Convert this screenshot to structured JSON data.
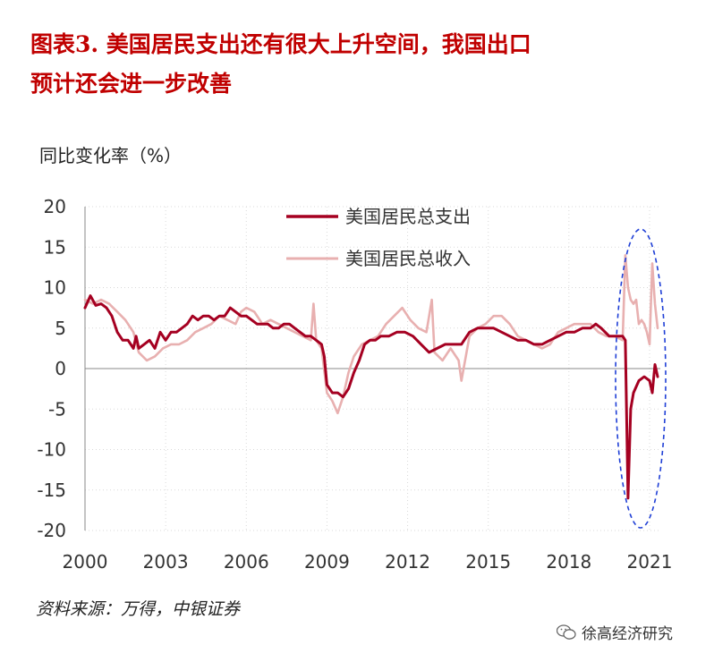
{
  "title": {
    "line1": "图表3. 美国居民支出还有很大上升空间，我国出口",
    "line2": "预计还会进一步改善"
  },
  "unit_label": "同比变化率（%）",
  "source": "资料来源：万得，中银证券",
  "watermark": "徐高经济研究",
  "colors": {
    "spending": "#a50021",
    "income": "#e8b0b0",
    "highlight": "#1f3fd6"
  },
  "chart_data": {
    "type": "line",
    "ylim": [
      -20,
      20
    ],
    "yticks": [
      20,
      15,
      10,
      5,
      0,
      -5,
      -10,
      -15,
      -20
    ],
    "xlim": [
      2000.0,
      2021.4
    ],
    "xticks": [
      2000,
      2003,
      2006,
      2009,
      2012,
      2015,
      2018,
      2021
    ],
    "legend_position": "top-center",
    "annotation": "2020–2021 highlighted with dashed ellipse",
    "series": [
      {
        "name": "美国居民总支出",
        "x": [
          2000.0,
          2000.2,
          2000.4,
          2000.6,
          2000.8,
          2001.0,
          2001.2,
          2001.4,
          2001.6,
          2001.8,
          2001.9,
          2002.0,
          2002.2,
          2002.4,
          2002.6,
          2002.8,
          2003.0,
          2003.2,
          2003.4,
          2003.6,
          2003.8,
          2004.0,
          2004.2,
          2004.4,
          2004.6,
          2004.8,
          2005.0,
          2005.2,
          2005.4,
          2005.6,
          2005.8,
          2006.0,
          2006.2,
          2006.4,
          2006.6,
          2006.8,
          2007.0,
          2007.2,
          2007.4,
          2007.6,
          2007.8,
          2008.0,
          2008.2,
          2008.4,
          2008.6,
          2008.8,
          2008.9,
          2009.0,
          2009.2,
          2009.4,
          2009.6,
          2009.8,
          2010.0,
          2010.2,
          2010.4,
          2010.6,
          2010.8,
          2011.0,
          2011.3,
          2011.6,
          2011.9,
          2012.2,
          2012.5,
          2012.8,
          2013.1,
          2013.4,
          2013.7,
          2014.0,
          2014.3,
          2014.6,
          2014.9,
          2015.2,
          2015.5,
          2015.8,
          2016.1,
          2016.4,
          2016.7,
          2017.0,
          2017.3,
          2017.6,
          2017.9,
          2018.2,
          2018.5,
          2018.8,
          2019.0,
          2019.2,
          2019.5,
          2019.8,
          2020.0,
          2020.1,
          2020.2,
          2020.3,
          2020.4,
          2020.6,
          2020.8,
          2021.0,
          2021.1,
          2021.2,
          2021.3
        ],
        "values": [
          7.5,
          9,
          7.8,
          8,
          7.5,
          6.5,
          4.5,
          3.5,
          3.5,
          2.5,
          4,
          2.5,
          3,
          3.5,
          2.5,
          4.5,
          3.5,
          4.5,
          4.5,
          5,
          5.5,
          6.5,
          6,
          6.5,
          6.5,
          6,
          6.5,
          6.5,
          7.5,
          7,
          6.5,
          6.5,
          6,
          5.5,
          5.5,
          5.5,
          5,
          5,
          5.5,
          5.5,
          5,
          4.5,
          4,
          4,
          3.5,
          3,
          1.5,
          -2,
          -3,
          -3,
          -3.5,
          -2.5,
          -0.5,
          1,
          3,
          3.5,
          3.5,
          4,
          4,
          4.5,
          4.5,
          4,
          3,
          2,
          2.5,
          3,
          3,
          3,
          4.5,
          5,
          5,
          5,
          4.5,
          4,
          3.5,
          3.5,
          3,
          3,
          3.5,
          4,
          4.5,
          4.5,
          5,
          5,
          5.5,
          5,
          4,
          4,
          4,
          3.5,
          -16,
          -5,
          -3,
          -1.5,
          -1,
          -1.5,
          -3,
          0.5,
          -1
        ]
      },
      {
        "name": "美国居民总收入",
        "x": [
          2000.0,
          2000.3,
          2000.6,
          2000.9,
          2001.2,
          2001.5,
          2001.8,
          2002.0,
          2002.3,
          2002.6,
          2002.9,
          2003.2,
          2003.5,
          2003.8,
          2004.1,
          2004.4,
          2004.7,
          2005.0,
          2005.3,
          2005.6,
          2005.8,
          2006.0,
          2006.3,
          2006.6,
          2006.9,
          2007.2,
          2007.5,
          2007.8,
          2008.1,
          2008.4,
          2008.5,
          2008.6,
          2008.8,
          2009.0,
          2009.2,
          2009.4,
          2009.6,
          2009.8,
          2010.0,
          2010.3,
          2010.6,
          2010.9,
          2011.2,
          2011.5,
          2011.8,
          2012.1,
          2012.4,
          2012.7,
          2012.9,
          2013.0,
          2013.3,
          2013.6,
          2013.9,
          2014.0,
          2014.3,
          2014.6,
          2014.9,
          2015.2,
          2015.5,
          2015.8,
          2016.1,
          2016.4,
          2016.7,
          2017.0,
          2017.3,
          2017.6,
          2017.9,
          2018.2,
          2018.5,
          2018.8,
          2019.1,
          2019.4,
          2019.7,
          2020.0,
          2020.1,
          2020.2,
          2020.3,
          2020.4,
          2020.5,
          2020.6,
          2020.7,
          2020.8,
          2020.9,
          2021.0,
          2021.1,
          2021.2,
          2021.3
        ],
        "values": [
          8.5,
          8,
          8.5,
          8,
          7,
          6,
          4.5,
          2,
          1,
          1.5,
          2.5,
          3,
          3,
          3.5,
          4.5,
          5,
          5.5,
          6.5,
          6,
          5.5,
          7,
          7.5,
          7,
          5.5,
          6,
          5.5,
          5,
          4.5,
          4,
          3.5,
          8,
          3.5,
          2.5,
          -3,
          -4,
          -5.5,
          -3.5,
          -0.5,
          1.5,
          3,
          3.5,
          4,
          5.5,
          6.5,
          7.5,
          6,
          5,
          4.5,
          8.5,
          2,
          1,
          2.5,
          1,
          -1.5,
          4,
          5,
          5.5,
          6.5,
          6.5,
          5.5,
          4,
          3.5,
          3,
          2.5,
          3,
          4.5,
          5,
          5.5,
          5.5,
          5.5,
          4.5,
          4,
          4,
          3.5,
          14,
          10,
          8.5,
          8,
          8.5,
          5.5,
          6,
          5.5,
          4.5,
          3,
          13,
          8,
          5
        ]
      }
    ]
  }
}
